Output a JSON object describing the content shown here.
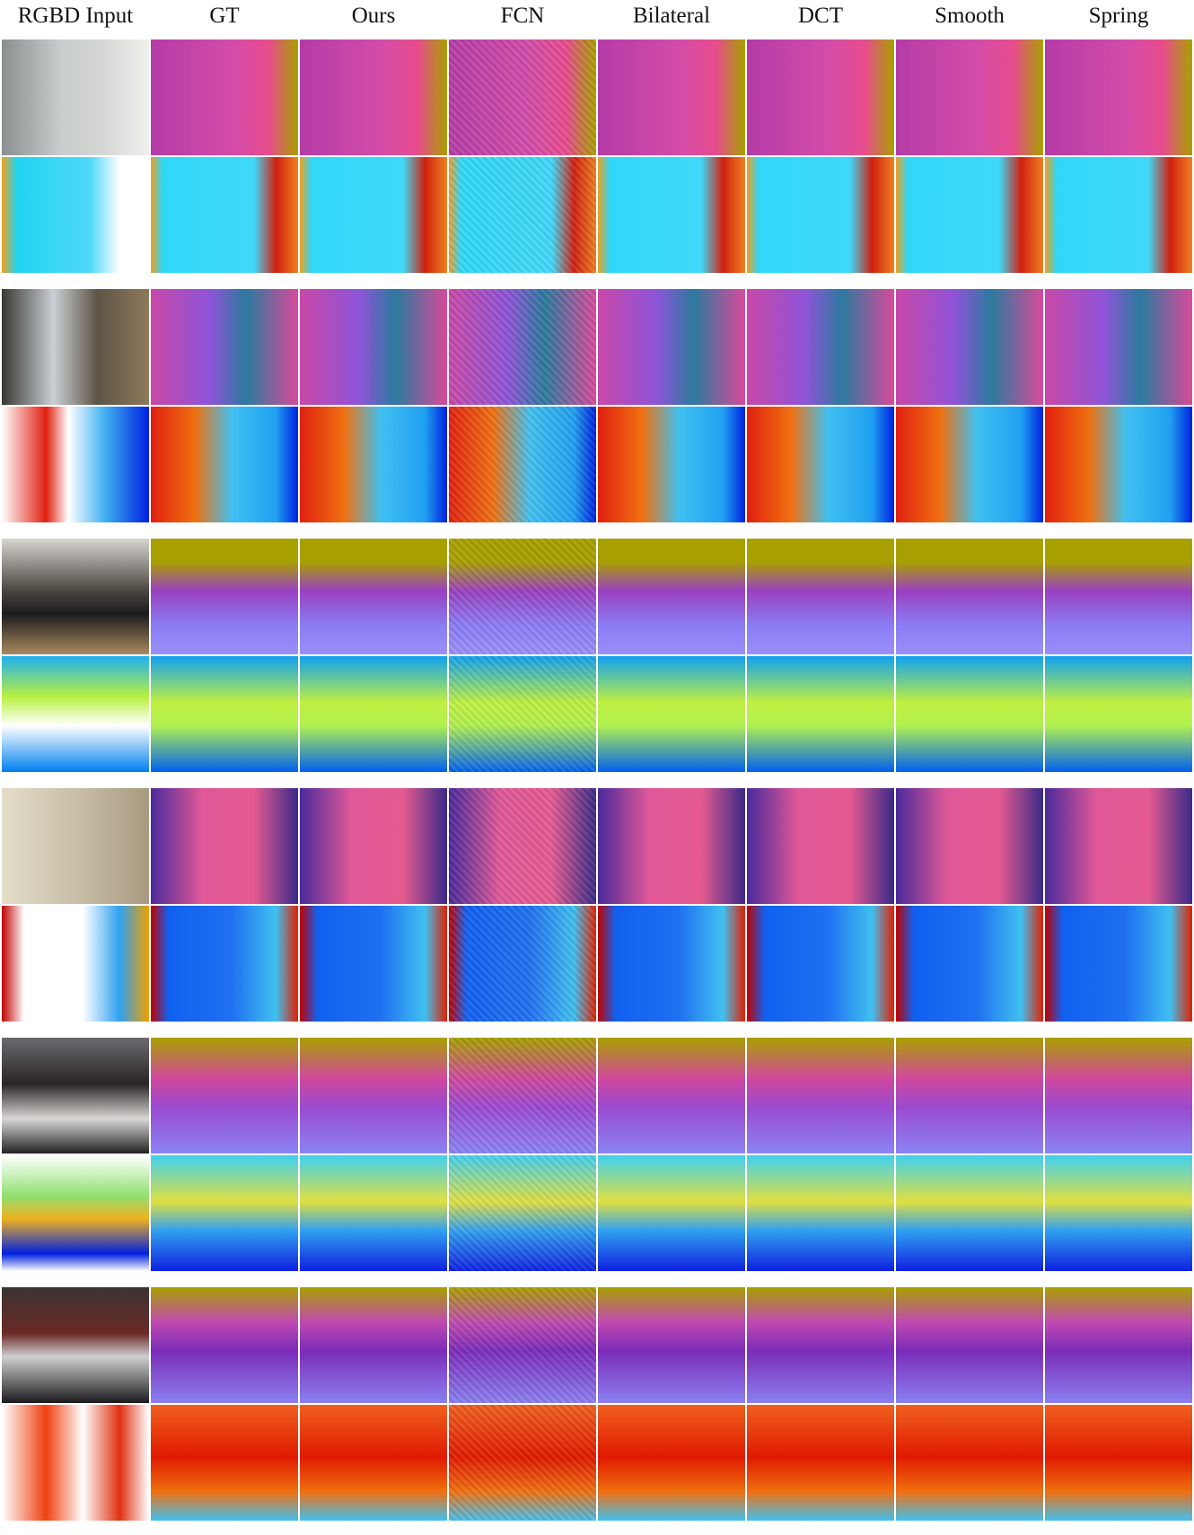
{
  "columns": [
    "RGBD Input",
    "GT",
    "Ours",
    "FCN",
    "Bilateral",
    "DCT",
    "Smooth",
    "Spring"
  ]
}
